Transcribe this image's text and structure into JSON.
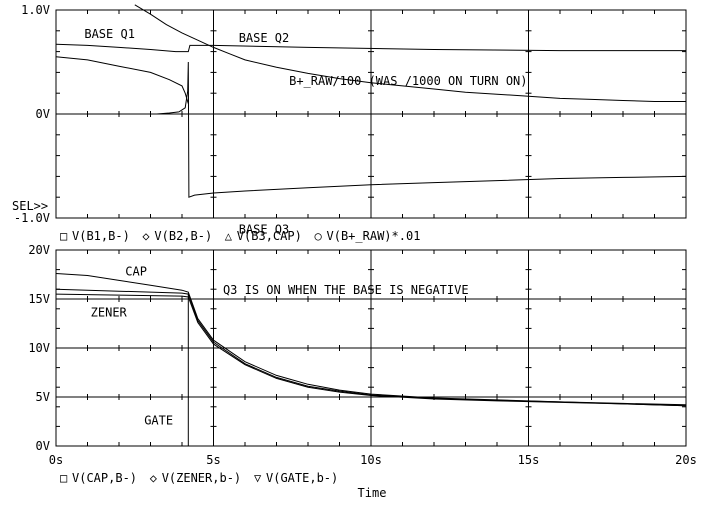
{
  "chart_data": [
    {
      "type": "line",
      "panel": "top",
      "ylim": [
        -1.0,
        1.0
      ],
      "xlim": [
        0,
        20
      ],
      "yticks": [
        {
          "value": 1.0,
          "label": "1.0V"
        },
        {
          "value": 0.0,
          "label": "0V"
        },
        {
          "value": -1.0,
          "label": "-1.0V"
        }
      ],
      "sel_marker": "SEL>>",
      "grid": true,
      "legend": [
        {
          "symbol": "□",
          "label": "V(B1,B-)"
        },
        {
          "symbol": "◇",
          "label": "V(B2,B-)"
        },
        {
          "symbol": "△",
          "label": "V(B3,CAP)"
        },
        {
          "symbol": "○",
          "label": "V(B+_RAW)*.01"
        }
      ],
      "annotations": [
        {
          "id": "base-q1",
          "text": "BASE Q1",
          "x": 0.9,
          "y": 0.73
        },
        {
          "id": "base-q2",
          "text": "BASE Q2",
          "x": 5.8,
          "y": 0.69
        },
        {
          "id": "braw",
          "text": "B+_RAW/100 (WAS /1000 ON TURN ON)",
          "x": 7.4,
          "y": 0.28
        },
        {
          "id": "base-q3",
          "text": "BASE Q3",
          "x": 5.8,
          "y": -1.15
        },
        {
          "id": "q3-note",
          "text": "Q3 IS ON WHEN THE BASE IS NEGATIVE",
          "x": 5.3,
          "y": -1.73
        }
      ],
      "series": [
        {
          "id": "b1",
          "points": [
            [
              0,
              0.67
            ],
            [
              1,
              0.66
            ],
            [
              2,
              0.64
            ],
            [
              3,
              0.62
            ],
            [
              3.8,
              0.6
            ],
            [
              4.2,
              0.6
            ],
            [
              4.25,
              0.66
            ],
            [
              5,
              0.66
            ],
            [
              8,
              0.64
            ],
            [
              12,
              0.62
            ],
            [
              16,
              0.61
            ],
            [
              20,
              0.61
            ]
          ]
        },
        {
          "id": "b2",
          "points": [
            [
              0,
              0.55
            ],
            [
              1,
              0.52
            ],
            [
              2,
              0.46
            ],
            [
              3,
              0.4
            ],
            [
              3.6,
              0.33
            ],
            [
              4.0,
              0.27
            ],
            [
              4.1,
              0.2
            ],
            [
              4.2,
              0.1
            ]
          ]
        },
        {
          "id": "b3",
          "points": [
            [
              3.2,
              0.0
            ],
            [
              3.6,
              0.01
            ],
            [
              3.9,
              0.02
            ],
            [
              4.1,
              0.06
            ],
            [
              4.18,
              0.22
            ],
            [
              4.2,
              0.5
            ],
            [
              4.22,
              -0.8
            ],
            [
              4.4,
              -0.78
            ],
            [
              5,
              -0.76
            ],
            [
              6,
              -0.74
            ],
            [
              8,
              -0.71
            ],
            [
              10,
              -0.68
            ],
            [
              12,
              -0.66
            ],
            [
              14,
              -0.64
            ],
            [
              16,
              -0.62
            ],
            [
              18,
              -0.61
            ],
            [
              20,
              -0.6
            ]
          ]
        },
        {
          "id": "braw",
          "points": [
            [
              2.5,
              1.05
            ],
            [
              3,
              0.96
            ],
            [
              3.5,
              0.86
            ],
            [
              4,
              0.78
            ],
            [
              4.5,
              0.71
            ],
            [
              5,
              0.64
            ],
            [
              5.5,
              0.58
            ],
            [
              6,
              0.52
            ],
            [
              7,
              0.45
            ],
            [
              8,
              0.39
            ],
            [
              9,
              0.34
            ],
            [
              10,
              0.3
            ],
            [
              11,
              0.27
            ],
            [
              12,
              0.24
            ],
            [
              13,
              0.21
            ],
            [
              14,
              0.19
            ],
            [
              15,
              0.17
            ],
            [
              16,
              0.15
            ],
            [
              17,
              0.14
            ],
            [
              18,
              0.13
            ],
            [
              19,
              0.12
            ],
            [
              20,
              0.12
            ]
          ]
        }
      ]
    },
    {
      "type": "line",
      "panel": "bottom",
      "ylim": [
        0,
        20
      ],
      "xlim": [
        0,
        20
      ],
      "yticks": [
        {
          "value": 20,
          "label": "20V"
        },
        {
          "value": 15,
          "label": "15V"
        },
        {
          "value": 10,
          "label": "10V"
        },
        {
          "value": 5,
          "label": "5V"
        },
        {
          "value": 0,
          "label": "0V"
        }
      ],
      "xticks": [
        {
          "value": 0,
          "label": "0s"
        },
        {
          "value": 5,
          "label": "5s"
        },
        {
          "value": 10,
          "label": "10s"
        },
        {
          "value": 15,
          "label": "15s"
        },
        {
          "value": 20,
          "label": "20s"
        }
      ],
      "xlabel": "Time",
      "grid": true,
      "legend": [
        {
          "symbol": "□",
          "label": "V(CAP,B-)"
        },
        {
          "symbol": "◇",
          "label": "V(ZENER,b-)"
        },
        {
          "symbol": "▽",
          "label": "V(GATE,b-)"
        }
      ],
      "annotations": [
        {
          "id": "cap",
          "text": "CAP",
          "x": 2.2,
          "y": 17.4
        },
        {
          "id": "zener",
          "text": "ZENER",
          "x": 1.1,
          "y": 13.2
        },
        {
          "id": "gate",
          "text": "GATE",
          "x": 2.8,
          "y": 2.2
        }
      ],
      "series": [
        {
          "id": "cap",
          "points": [
            [
              0,
              17.6
            ],
            [
              1,
              17.4
            ],
            [
              2,
              16.9
            ],
            [
              3,
              16.4
            ],
            [
              4,
              15.9
            ],
            [
              4.2,
              15.7
            ],
            [
              4.5,
              13.0
            ],
            [
              5,
              10.8
            ],
            [
              6,
              8.6
            ],
            [
              7,
              7.2
            ],
            [
              8,
              6.3
            ],
            [
              9,
              5.7
            ],
            [
              10,
              5.3
            ],
            [
              12,
              4.9
            ],
            [
              14,
              4.7
            ],
            [
              16,
              4.5
            ],
            [
              18,
              4.35
            ],
            [
              20,
              4.2
            ]
          ]
        },
        {
          "id": "zener",
          "points": [
            [
              0,
              16.0
            ],
            [
              1,
              15.9
            ],
            [
              2,
              15.8
            ],
            [
              3,
              15.7
            ],
            [
              4,
              15.6
            ],
            [
              4.2,
              15.5
            ],
            [
              4.5,
              12.8
            ],
            [
              5,
              10.6
            ],
            [
              6,
              8.4
            ],
            [
              7,
              7.0
            ],
            [
              8,
              6.1
            ],
            [
              9,
              5.6
            ],
            [
              10,
              5.2
            ],
            [
              12,
              4.85
            ],
            [
              14,
              4.65
            ],
            [
              16,
              4.5
            ],
            [
              18,
              4.3
            ],
            [
              20,
              4.1
            ]
          ]
        },
        {
          "id": "zener2",
          "points": [
            [
              0,
              15.5
            ],
            [
              1,
              15.45
            ],
            [
              2,
              15.4
            ],
            [
              3,
              15.35
            ],
            [
              4,
              15.3
            ],
            [
              4.2,
              15.2
            ],
            [
              4.5,
              12.6
            ],
            [
              5,
              10.4
            ],
            [
              6,
              8.3
            ],
            [
              7,
              6.9
            ],
            [
              8,
              6.0
            ],
            [
              9,
              5.5
            ],
            [
              10,
              5.15
            ],
            [
              12,
              4.8
            ],
            [
              14,
              4.6
            ],
            [
              16,
              4.45
            ],
            [
              18,
              4.3
            ],
            [
              20,
              4.1
            ]
          ]
        },
        {
          "id": "gate",
          "points": [
            [
              4.2,
              15.6
            ],
            [
              4.2,
              0.0
            ]
          ]
        }
      ]
    }
  ]
}
